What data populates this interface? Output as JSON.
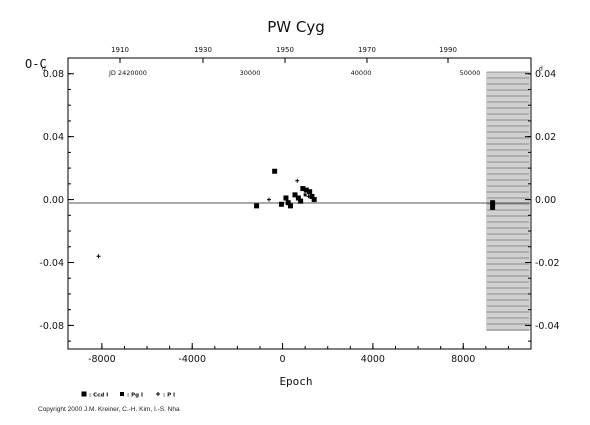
{
  "chart_data": {
    "type": "scatter",
    "title": "PW Cyg",
    "xlabel": "Epoch",
    "ylabel": "O-C",
    "xlim": [
      -9500,
      11000
    ],
    "ylim": [
      -0.095,
      0.09
    ],
    "x_ticks": [
      "-8000",
      "-4000",
      "0",
      "4000",
      "8000"
    ],
    "y_ticks_left": [
      "0.08",
      "0.04",
      "0.00",
      "-0.04",
      "-0.08"
    ],
    "y_ticks_right": [
      "0.04",
      "0.02",
      "0.00",
      "-0.02",
      "-0.04"
    ],
    "y_tick_superscript": "d",
    "top_axis_years": [
      "1910",
      "1930",
      "1950",
      "1970",
      "1990"
    ],
    "top_axis_jd_label": "JD 2420000",
    "top_axis_jd": [
      "30000",
      "40000",
      "50000"
    ],
    "series": [
      {
        "name": ": Ccd I",
        "marker": "square",
        "points": [
          [
            -1150,
            -0.004
          ],
          [
            -350,
            0.018
          ],
          [
            -50,
            -0.003
          ],
          [
            150,
            0.001
          ],
          [
            250,
            -0.002
          ],
          [
            350,
            -0.004
          ],
          [
            550,
            0.003
          ],
          [
            700,
            0.001
          ],
          [
            800,
            -0.001
          ],
          [
            900,
            0.007
          ],
          [
            1050,
            0.006
          ],
          [
            1200,
            0.005
          ],
          [
            1300,
            0.002
          ],
          [
            1400,
            0.0
          ],
          [
            9300,
            -0.002
          ],
          [
            9300,
            -0.005
          ]
        ]
      },
      {
        "name": ": Pg I",
        "marker": "square-small",
        "points": [
          [
            1000,
            0.003
          ]
        ]
      },
      {
        "name": ": P I",
        "marker": "plus",
        "points": [
          [
            -8150,
            -0.036
          ],
          [
            -600,
            0.0
          ],
          [
            650,
            0.012
          ],
          [
            1150,
            0.002
          ]
        ]
      }
    ]
  },
  "copyright": "Copyright 2000 J.M. Kreiner, C.-H. Kim, I.-S. Nha"
}
